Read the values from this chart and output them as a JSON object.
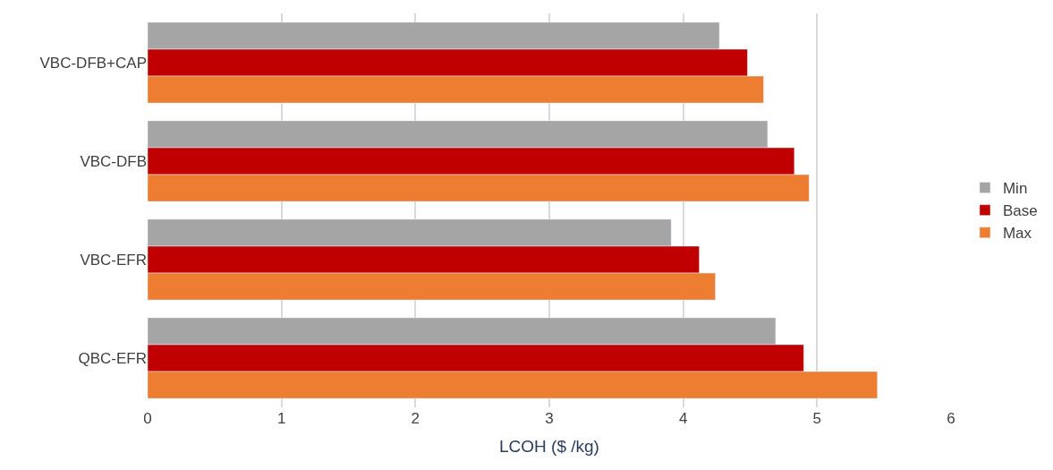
{
  "chart_data": {
    "type": "bar",
    "orientation": "horizontal",
    "xlabel": "LCOH ($ /kg)",
    "categories": [
      "VBC-DFB+CAP",
      "VBC-DFB",
      "VBC-EFR",
      "QBC-EFR"
    ],
    "series": [
      {
        "name": "Min",
        "color": "#a5a5a5",
        "values": [
          4.27,
          4.63,
          3.91,
          4.69
        ]
      },
      {
        "name": "Base",
        "color": "#c00000",
        "values": [
          4.48,
          4.83,
          4.12,
          4.9
        ]
      },
      {
        "name": "Max",
        "color": "#ed7d31",
        "values": [
          4.6,
          4.94,
          4.24,
          5.45
        ]
      }
    ],
    "xlim": [
      0,
      6
    ],
    "xticks": [
      0,
      1,
      2,
      3,
      4,
      5,
      6
    ],
    "grid": "x",
    "legend": "right"
  }
}
